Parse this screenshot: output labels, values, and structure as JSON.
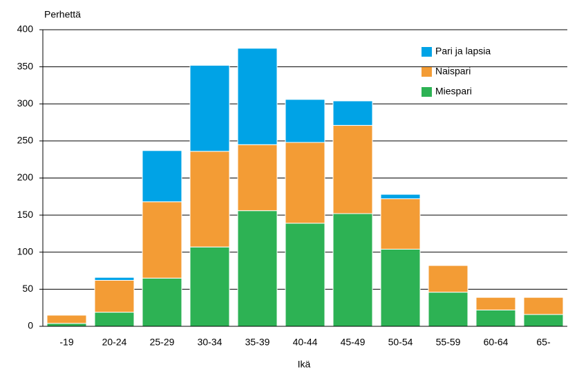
{
  "chart_data": {
    "type": "stacked-bar",
    "y_label": "Perhettä",
    "x_label": "Ikä",
    "categories": [
      "-19",
      "20-24",
      "25-29",
      "30-34",
      "35-39",
      "40-44",
      "45-49",
      "50-54",
      "55-59",
      "60-64",
      "65-"
    ],
    "series": [
      {
        "name": "Pari ja lapsia",
        "color": "#00a3e6",
        "values": [
          0,
          4,
          69,
          116,
          130,
          58,
          33,
          6,
          0,
          0,
          0
        ]
      },
      {
        "name": "Naispari",
        "color": "#f39c35",
        "values": [
          11,
          43,
          103,
          129,
          89,
          109,
          119,
          68,
          36,
          17,
          23
        ]
      },
      {
        "name": "Miespari",
        "color": "#2db254",
        "values": [
          4,
          19,
          65,
          107,
          156,
          139,
          152,
          104,
          46,
          22,
          16
        ]
      }
    ],
    "ylim": [
      0,
      400
    ],
    "yticks": [
      0,
      50,
      100,
      150,
      200,
      250,
      300,
      350,
      400
    ],
    "grid": true
  }
}
